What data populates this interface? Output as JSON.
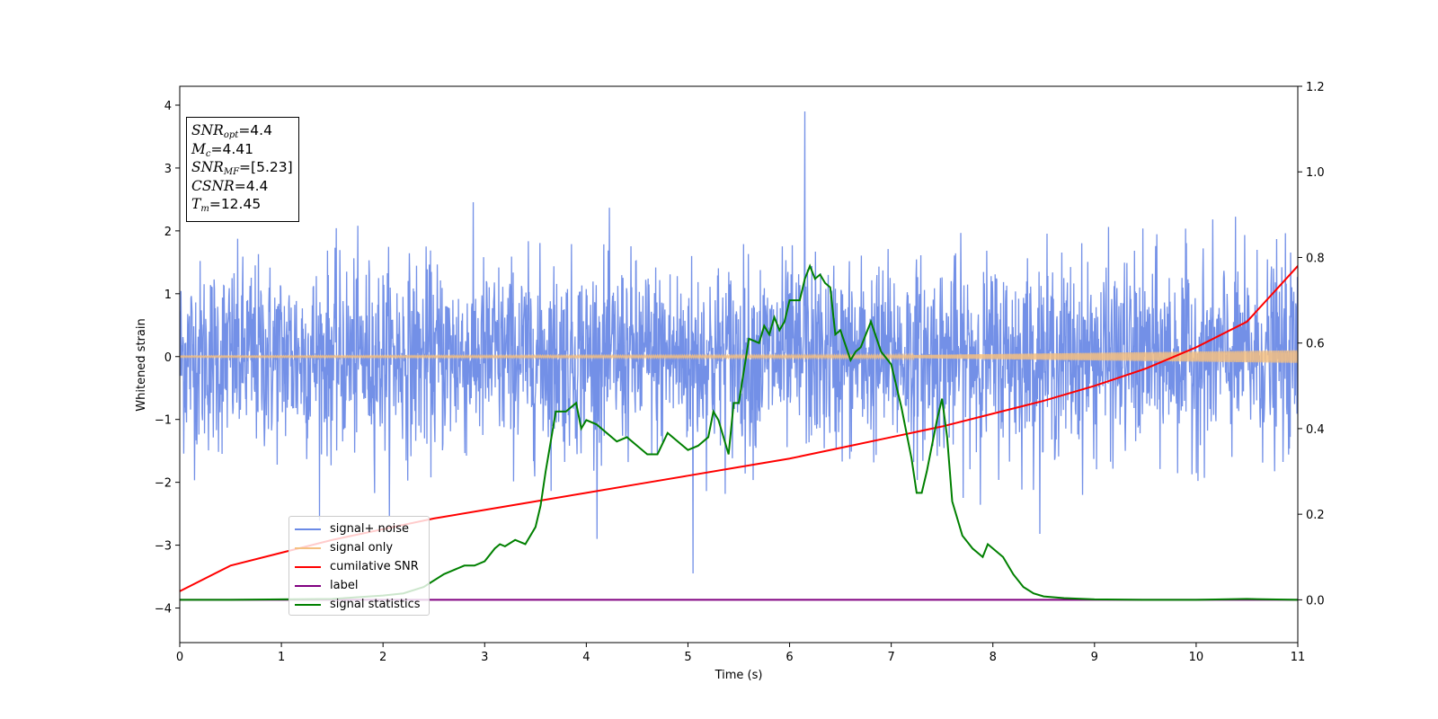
{
  "chart_data": {
    "type": "line",
    "xlabel": "Time (s)",
    "ylabel": "Whitened strain",
    "xlim": [
      0,
      11
    ],
    "ylim_left": [
      -4.55,
      4.3
    ],
    "ylim_right": [
      -0.1,
      1.2
    ],
    "x_ticks": [
      "0",
      "1",
      "2",
      "3",
      "4",
      "5",
      "6",
      "7",
      "8",
      "9",
      "10",
      "11"
    ],
    "y_ticks_left": [
      "4",
      "3",
      "2",
      "1",
      "0",
      "−1",
      "−2",
      "−3",
      "−4"
    ],
    "y_ticks_right": [
      "1.2",
      "1.0",
      "0.8",
      "0.6",
      "0.4",
      "0.2",
      "0.0"
    ],
    "grid": false,
    "legend_position": "lower-left",
    "series": [
      {
        "name": "signal+ noise",
        "axis": "left",
        "color": "#6b8ae6",
        "description_values": {
          "typical_range": [
            -2.0,
            2.0
          ],
          "max_peak": [
            6.15,
            3.9
          ],
          "min_peak": [
            5.05,
            -3.45
          ]
        }
      },
      {
        "name": "signal only",
        "axis": "left",
        "color": "#f5c080",
        "envelope": {
          "x": [
            0,
            7,
            8,
            9,
            10,
            11
          ],
          "half_width": [
            0.01,
            0.02,
            0.04,
            0.06,
            0.08,
            0.1
          ]
        }
      },
      {
        "name": "cumilative SNR",
        "axis": "right",
        "color": "#ff0000",
        "x": [
          0,
          0.5,
          1,
          1.5,
          2,
          2.5,
          3,
          3.5,
          4,
          4.5,
          5,
          5.5,
          6,
          6.5,
          7,
          7.5,
          8,
          8.5,
          9,
          9.5,
          10,
          10.5,
          11
        ],
        "y": [
          0.02,
          0.08,
          0.11,
          0.14,
          0.165,
          0.19,
          0.21,
          0.23,
          0.25,
          0.27,
          0.29,
          0.31,
          0.33,
          0.355,
          0.38,
          0.405,
          0.435,
          0.465,
          0.5,
          0.54,
          0.59,
          0.65,
          0.78
        ]
      },
      {
        "name": "label",
        "axis": "right",
        "color": "#800080",
        "x": [
          0,
          11
        ],
        "y": [
          0.0,
          0.0
        ]
      },
      {
        "name": "signal statistics",
        "axis": "right",
        "color": "#008000",
        "x": [
          0,
          0.5,
          1,
          1.5,
          2,
          2.2,
          2.4,
          2.6,
          2.8,
          2.9,
          3.0,
          3.1,
          3.15,
          3.2,
          3.3,
          3.4,
          3.5,
          3.55,
          3.6,
          3.7,
          3.8,
          3.9,
          3.95,
          4.0,
          4.1,
          4.2,
          4.3,
          4.4,
          4.5,
          4.6,
          4.7,
          4.8,
          4.9,
          5.0,
          5.1,
          5.2,
          5.25,
          5.3,
          5.4,
          5.45,
          5.5,
          5.6,
          5.7,
          5.75,
          5.8,
          5.85,
          5.9,
          5.95,
          6.0,
          6.05,
          6.1,
          6.15,
          6.2,
          6.25,
          6.3,
          6.35,
          6.4,
          6.45,
          6.5,
          6.6,
          6.65,
          6.7,
          6.8,
          6.9,
          7.0,
          7.05,
          7.1,
          7.2,
          7.25,
          7.3,
          7.35,
          7.4,
          7.45,
          7.5,
          7.55,
          7.6,
          7.7,
          7.8,
          7.9,
          7.95,
          8.0,
          8.05,
          8.1,
          8.2,
          8.3,
          8.4,
          8.5,
          8.7,
          9.0,
          9.5,
          10.0,
          10.5,
          11.0
        ],
        "y": [
          0.0,
          0.0,
          0.001,
          0.002,
          0.01,
          0.015,
          0.03,
          0.06,
          0.08,
          0.08,
          0.09,
          0.12,
          0.13,
          0.125,
          0.14,
          0.13,
          0.17,
          0.22,
          0.3,
          0.44,
          0.44,
          0.46,
          0.4,
          0.42,
          0.41,
          0.39,
          0.37,
          0.38,
          0.36,
          0.34,
          0.34,
          0.39,
          0.37,
          0.35,
          0.36,
          0.38,
          0.44,
          0.42,
          0.34,
          0.46,
          0.46,
          0.61,
          0.6,
          0.64,
          0.62,
          0.66,
          0.63,
          0.65,
          0.7,
          0.7,
          0.7,
          0.75,
          0.78,
          0.75,
          0.76,
          0.74,
          0.73,
          0.62,
          0.63,
          0.56,
          0.58,
          0.59,
          0.65,
          0.58,
          0.55,
          0.5,
          0.45,
          0.33,
          0.25,
          0.25,
          0.3,
          0.36,
          0.42,
          0.47,
          0.38,
          0.23,
          0.15,
          0.12,
          0.1,
          0.13,
          0.12,
          0.11,
          0.1,
          0.06,
          0.03,
          0.015,
          0.008,
          0.004,
          0.001,
          0.0,
          0.0,
          0.002,
          0.0
        ]
      }
    ]
  },
  "info_box": {
    "snr_opt": {
      "label": "SNR",
      "sub": "opt",
      "value": "=4.4"
    },
    "mc": {
      "label": "M",
      "sub": "c",
      "value": "=4.41"
    },
    "snr_mf": {
      "label": "SNR",
      "sub": "MF",
      "value": "=[5.23]"
    },
    "csnr": {
      "label": "CSNR",
      "value": "=4.4"
    },
    "tm": {
      "label": "T",
      "sub": "m",
      "value": "=12.45"
    }
  },
  "legend": {
    "items": [
      {
        "label": "signal+ noise",
        "color": "#6b8ae6"
      },
      {
        "label": "signal only",
        "color": "#f5c080"
      },
      {
        "label": "cumilative SNR",
        "color": "#ff0000"
      },
      {
        "label": "label",
        "color": "#800080"
      },
      {
        "label": "signal statistics",
        "color": "#008000"
      }
    ]
  }
}
